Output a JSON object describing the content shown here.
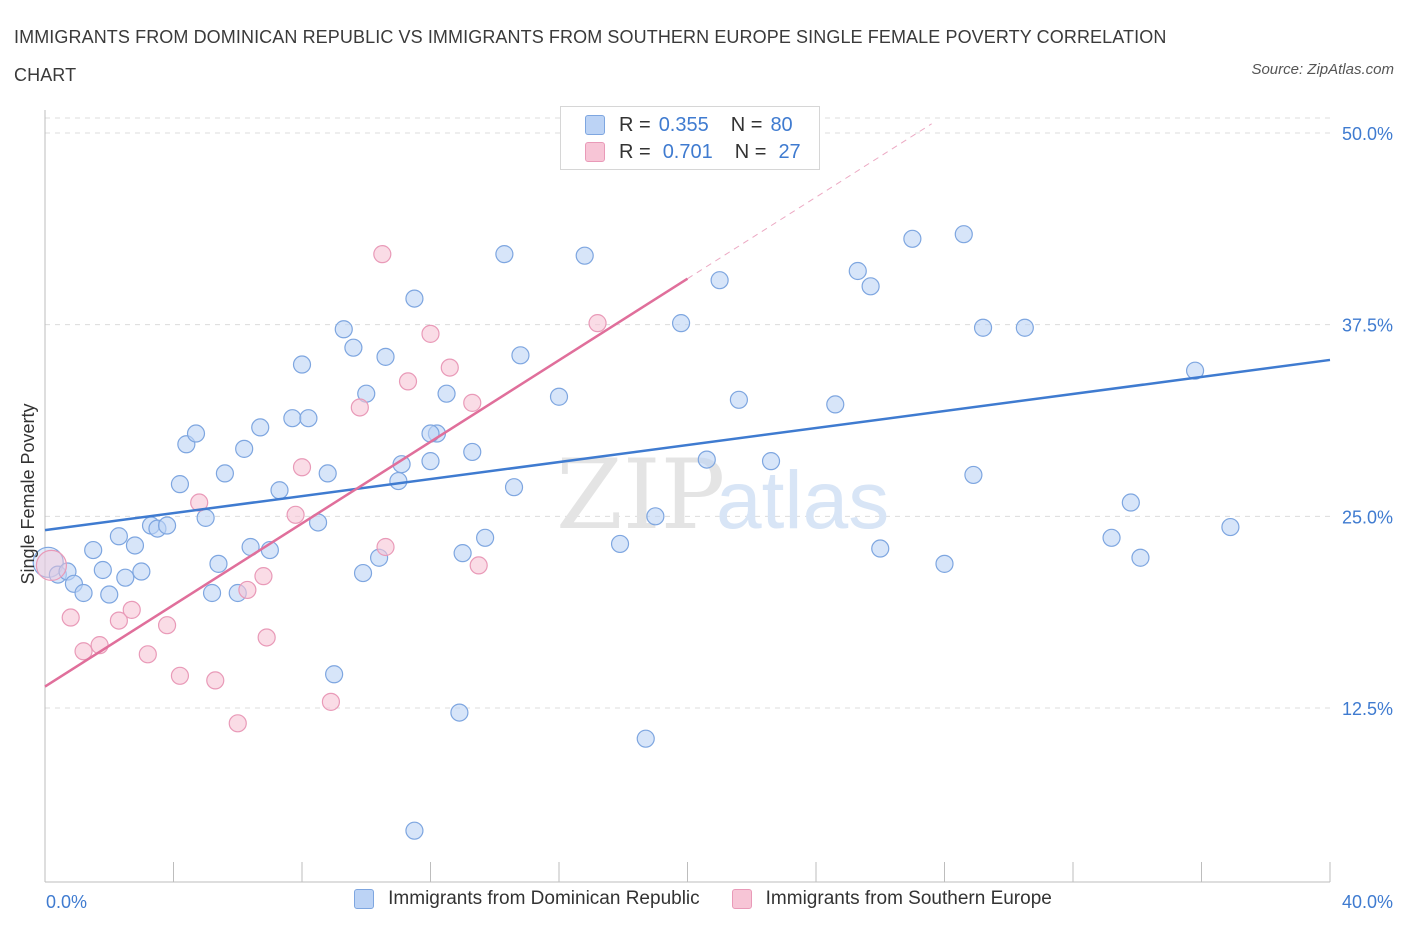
{
  "title": "IMMIGRANTS FROM DOMINICAN REPUBLIC VS IMMIGRANTS FROM SOUTHERN EUROPE SINGLE FEMALE POVERTY CORRELATION CHART",
  "source": "Source: ZipAtlas.com",
  "watermark": {
    "zip": "ZIP",
    "atlas": "atlas"
  },
  "colors": {
    "blue": "#3f7bd0",
    "blue_fill": "#bcd3f5",
    "pink": "#e06f9b",
    "pink_fill": "#f7c5d6",
    "grid": "#dcdcdc"
  },
  "legend": {
    "rows": [
      {
        "r_label": "R =",
        "r_value": "0.355",
        "n_label": "N =",
        "n_value": "80"
      },
      {
        "r_label": "R =",
        "r_value": "0.701",
        "n_label": "N =",
        "n_value": "27"
      }
    ]
  },
  "chart_data": {
    "type": "scatter",
    "title": "IMMIGRANTS FROM DOMINICAN REPUBLIC VS IMMIGRANTS FROM SOUTHERN EUROPE SINGLE FEMALE POVERTY CORRELATION CHART",
    "xlabel": "",
    "ylabel": "Single Female Poverty",
    "xlim": [
      0,
      40
    ],
    "ylim": [
      0,
      52
    ],
    "x_tick_labels": [
      "0.0%",
      "40.0%"
    ],
    "y_ticks": [
      12.5,
      25.0,
      37.5,
      50.0
    ],
    "y_tick_labels": [
      "12.5%",
      "25.0%",
      "37.5%",
      "50.0%"
    ],
    "grid": true,
    "legend_position": "top-center",
    "series": [
      {
        "name": "Immigrants from Dominican Republic",
        "color": "#3f7bd0",
        "r": 0.355,
        "n": 80,
        "trend": {
          "x": [
            0,
            40
          ],
          "y": [
            24.1,
            35.2
          ]
        },
        "points": [
          [
            0.1,
            22
          ],
          [
            0.4,
            21.2
          ],
          [
            0.7,
            21.4
          ],
          [
            0.9,
            20.6
          ],
          [
            1.2,
            20
          ],
          [
            1.5,
            22.8
          ],
          [
            1.8,
            21.5
          ],
          [
            2.0,
            19.9
          ],
          [
            2.3,
            23.7
          ],
          [
            2.5,
            21.0
          ],
          [
            2.8,
            23.1
          ],
          [
            3.0,
            21.4
          ],
          [
            3.3,
            24.4
          ],
          [
            3.5,
            24.2
          ],
          [
            3.8,
            24.4
          ],
          [
            4.2,
            27.1
          ],
          [
            4.4,
            29.7
          ],
          [
            4.7,
            30.4
          ],
          [
            5.0,
            24.9
          ],
          [
            5.2,
            20.0
          ],
          [
            5.4,
            21.9
          ],
          [
            5.6,
            27.8
          ],
          [
            6.0,
            20.0
          ],
          [
            6.2,
            29.4
          ],
          [
            6.4,
            23.0
          ],
          [
            6.7,
            30.8
          ],
          [
            7.0,
            22.8
          ],
          [
            7.3,
            26.7
          ],
          [
            7.7,
            31.4
          ],
          [
            8.0,
            34.9
          ],
          [
            8.2,
            31.4
          ],
          [
            8.5,
            24.6
          ],
          [
            8.8,
            27.8
          ],
          [
            9.0,
            14.7
          ],
          [
            9.3,
            37.2
          ],
          [
            9.6,
            36.0
          ],
          [
            9.9,
            21.3
          ],
          [
            10.0,
            33.0
          ],
          [
            10.4,
            22.3
          ],
          [
            10.6,
            35.4
          ],
          [
            11.0,
            27.3
          ],
          [
            11.1,
            28.4
          ],
          [
            11.5,
            39.2
          ],
          [
            12.0,
            28.6
          ],
          [
            12.2,
            30.4
          ],
          [
            12.5,
            33.0
          ],
          [
            12.9,
            12.2
          ],
          [
            13.0,
            22.6
          ],
          [
            13.3,
            29.2
          ],
          [
            13.7,
            23.6
          ],
          [
            11.5,
            4.5
          ],
          [
            14.3,
            42.1
          ],
          [
            14.6,
            26.9
          ],
          [
            14.8,
            35.5
          ],
          [
            16.0,
            32.8
          ],
          [
            16.8,
            42.0
          ],
          [
            17.9,
            23.2
          ],
          [
            18.7,
            10.5
          ],
          [
            19.0,
            25.0
          ],
          [
            19.8,
            37.6
          ],
          [
            20.6,
            28.7
          ],
          [
            21.0,
            40.4
          ],
          [
            21.6,
            32.6
          ],
          [
            22.6,
            28.6
          ],
          [
            24.6,
            32.3
          ],
          [
            25.3,
            41.0
          ],
          [
            25.7,
            40.0
          ],
          [
            26.0,
            22.9
          ],
          [
            27.0,
            43.1
          ],
          [
            28.0,
            21.9
          ],
          [
            28.6,
            43.4
          ],
          [
            28.9,
            27.7
          ],
          [
            29.2,
            37.3
          ],
          [
            30.5,
            37.3
          ],
          [
            33.2,
            23.6
          ],
          [
            33.8,
            25.9
          ],
          [
            34.1,
            22.3
          ],
          [
            35.8,
            34.5
          ],
          [
            36.9,
            24.3
          ],
          [
            12.0,
            30.4
          ]
        ]
      },
      {
        "name": "Immigrants from Southern Europe",
        "color": "#e06f9b",
        "r": 0.701,
        "n": 27,
        "trend": {
          "x": [
            0,
            20
          ],
          "y": [
            13.9,
            40.5
          ]
        },
        "trend_extension": {
          "x": [
            20,
            27.6
          ],
          "y": [
            40.5,
            50.6
          ]
        },
        "points": [
          [
            0.2,
            21.8
          ],
          [
            0.8,
            18.4
          ],
          [
            1.2,
            16.2
          ],
          [
            1.7,
            16.6
          ],
          [
            2.3,
            18.2
          ],
          [
            2.7,
            18.9
          ],
          [
            3.2,
            16.0
          ],
          [
            3.8,
            17.9
          ],
          [
            4.2,
            14.6
          ],
          [
            4.8,
            25.9
          ],
          [
            5.3,
            14.3
          ],
          [
            6.3,
            20.2
          ],
          [
            6.0,
            11.5
          ],
          [
            6.9,
            17.1
          ],
          [
            6.8,
            21.1
          ],
          [
            8.0,
            28.2
          ],
          [
            7.8,
            25.1
          ],
          [
            8.9,
            12.9
          ],
          [
            9.8,
            32.1
          ],
          [
            10.5,
            42.1
          ],
          [
            10.6,
            23.0
          ],
          [
            11.3,
            33.8
          ],
          [
            12.0,
            36.9
          ],
          [
            12.6,
            34.7
          ],
          [
            13.3,
            32.4
          ],
          [
            13.5,
            21.8
          ],
          [
            17.2,
            37.6
          ]
        ]
      }
    ]
  },
  "bottom_legend": [
    "Immigrants from Dominican Republic",
    "Immigrants from Southern Europe"
  ]
}
